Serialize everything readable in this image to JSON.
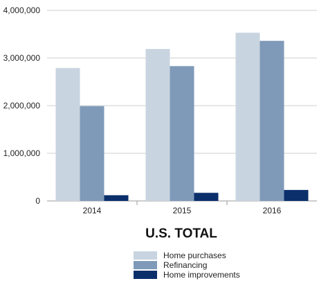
{
  "chart_data": {
    "type": "bar",
    "title": "U.S. TOTAL",
    "xlabel": "",
    "ylabel": "",
    "categories": [
      "2014",
      "2015",
      "2016"
    ],
    "series": [
      {
        "name": "Home purchases",
        "color": "#c8d4e0",
        "values": [
          2790000,
          3190000,
          3530000
        ]
      },
      {
        "name": "Refinancing",
        "color": "#7f9ab9",
        "values": [
          1990000,
          2830000,
          3360000
        ]
      },
      {
        "name": "Home improvements",
        "color": "#0b2f6b",
        "values": [
          120000,
          170000,
          230000
        ]
      }
    ],
    "ylim": [
      0,
      4000000
    ],
    "yticks": [
      {
        "value": 0,
        "label": "0"
      },
      {
        "value": 1000000,
        "label": "1,000,000"
      },
      {
        "value": 2000000,
        "label": "2,000,000"
      },
      {
        "value": 3000000,
        "label": "3,000,000"
      },
      {
        "value": 4000000,
        "label": "4,000,000"
      }
    ],
    "grid": true,
    "legend_position": "bottom"
  }
}
